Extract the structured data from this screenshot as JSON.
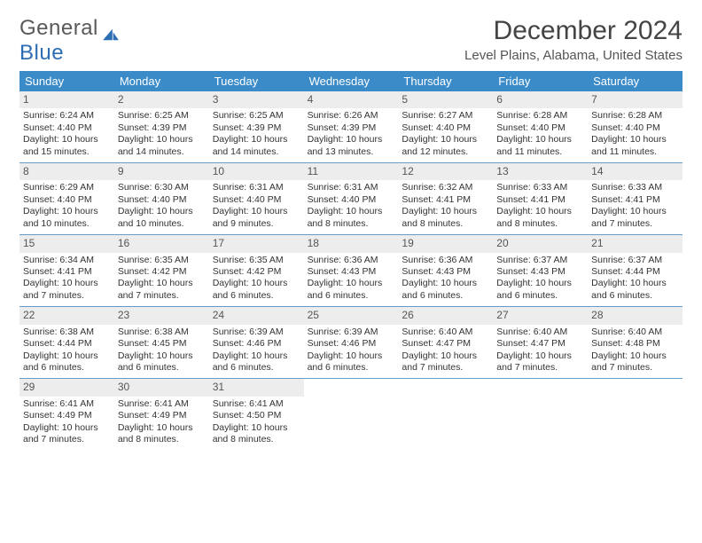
{
  "logo": {
    "word1": "General",
    "word2": "Blue"
  },
  "title": "December 2024",
  "location": "Level Plains, Alabama, United States",
  "colors": {
    "header_bg": "#3b8bc9",
    "header_text": "#ffffff",
    "daynum_bg": "#ededed",
    "week_border": "#6a9bc7",
    "logo_accent": "#2d6db4",
    "body_text": "#333333"
  },
  "daynames": [
    "Sunday",
    "Monday",
    "Tuesday",
    "Wednesday",
    "Thursday",
    "Friday",
    "Saturday"
  ],
  "weeks": [
    [
      {
        "n": "1",
        "sr": "Sunrise: 6:24 AM",
        "ss": "Sunset: 4:40 PM",
        "d1": "Daylight: 10 hours",
        "d2": "and 15 minutes."
      },
      {
        "n": "2",
        "sr": "Sunrise: 6:25 AM",
        "ss": "Sunset: 4:39 PM",
        "d1": "Daylight: 10 hours",
        "d2": "and 14 minutes."
      },
      {
        "n": "3",
        "sr": "Sunrise: 6:25 AM",
        "ss": "Sunset: 4:39 PM",
        "d1": "Daylight: 10 hours",
        "d2": "and 14 minutes."
      },
      {
        "n": "4",
        "sr": "Sunrise: 6:26 AM",
        "ss": "Sunset: 4:39 PM",
        "d1": "Daylight: 10 hours",
        "d2": "and 13 minutes."
      },
      {
        "n": "5",
        "sr": "Sunrise: 6:27 AM",
        "ss": "Sunset: 4:40 PM",
        "d1": "Daylight: 10 hours",
        "d2": "and 12 minutes."
      },
      {
        "n": "6",
        "sr": "Sunrise: 6:28 AM",
        "ss": "Sunset: 4:40 PM",
        "d1": "Daylight: 10 hours",
        "d2": "and 11 minutes."
      },
      {
        "n": "7",
        "sr": "Sunrise: 6:28 AM",
        "ss": "Sunset: 4:40 PM",
        "d1": "Daylight: 10 hours",
        "d2": "and 11 minutes."
      }
    ],
    [
      {
        "n": "8",
        "sr": "Sunrise: 6:29 AM",
        "ss": "Sunset: 4:40 PM",
        "d1": "Daylight: 10 hours",
        "d2": "and 10 minutes."
      },
      {
        "n": "9",
        "sr": "Sunrise: 6:30 AM",
        "ss": "Sunset: 4:40 PM",
        "d1": "Daylight: 10 hours",
        "d2": "and 10 minutes."
      },
      {
        "n": "10",
        "sr": "Sunrise: 6:31 AM",
        "ss": "Sunset: 4:40 PM",
        "d1": "Daylight: 10 hours",
        "d2": "and 9 minutes."
      },
      {
        "n": "11",
        "sr": "Sunrise: 6:31 AM",
        "ss": "Sunset: 4:40 PM",
        "d1": "Daylight: 10 hours",
        "d2": "and 8 minutes."
      },
      {
        "n": "12",
        "sr": "Sunrise: 6:32 AM",
        "ss": "Sunset: 4:41 PM",
        "d1": "Daylight: 10 hours",
        "d2": "and 8 minutes."
      },
      {
        "n": "13",
        "sr": "Sunrise: 6:33 AM",
        "ss": "Sunset: 4:41 PM",
        "d1": "Daylight: 10 hours",
        "d2": "and 8 minutes."
      },
      {
        "n": "14",
        "sr": "Sunrise: 6:33 AM",
        "ss": "Sunset: 4:41 PM",
        "d1": "Daylight: 10 hours",
        "d2": "and 7 minutes."
      }
    ],
    [
      {
        "n": "15",
        "sr": "Sunrise: 6:34 AM",
        "ss": "Sunset: 4:41 PM",
        "d1": "Daylight: 10 hours",
        "d2": "and 7 minutes."
      },
      {
        "n": "16",
        "sr": "Sunrise: 6:35 AM",
        "ss": "Sunset: 4:42 PM",
        "d1": "Daylight: 10 hours",
        "d2": "and 7 minutes."
      },
      {
        "n": "17",
        "sr": "Sunrise: 6:35 AM",
        "ss": "Sunset: 4:42 PM",
        "d1": "Daylight: 10 hours",
        "d2": "and 6 minutes."
      },
      {
        "n": "18",
        "sr": "Sunrise: 6:36 AM",
        "ss": "Sunset: 4:43 PM",
        "d1": "Daylight: 10 hours",
        "d2": "and 6 minutes."
      },
      {
        "n": "19",
        "sr": "Sunrise: 6:36 AM",
        "ss": "Sunset: 4:43 PM",
        "d1": "Daylight: 10 hours",
        "d2": "and 6 minutes."
      },
      {
        "n": "20",
        "sr": "Sunrise: 6:37 AM",
        "ss": "Sunset: 4:43 PM",
        "d1": "Daylight: 10 hours",
        "d2": "and 6 minutes."
      },
      {
        "n": "21",
        "sr": "Sunrise: 6:37 AM",
        "ss": "Sunset: 4:44 PM",
        "d1": "Daylight: 10 hours",
        "d2": "and 6 minutes."
      }
    ],
    [
      {
        "n": "22",
        "sr": "Sunrise: 6:38 AM",
        "ss": "Sunset: 4:44 PM",
        "d1": "Daylight: 10 hours",
        "d2": "and 6 minutes."
      },
      {
        "n": "23",
        "sr": "Sunrise: 6:38 AM",
        "ss": "Sunset: 4:45 PM",
        "d1": "Daylight: 10 hours",
        "d2": "and 6 minutes."
      },
      {
        "n": "24",
        "sr": "Sunrise: 6:39 AM",
        "ss": "Sunset: 4:46 PM",
        "d1": "Daylight: 10 hours",
        "d2": "and 6 minutes."
      },
      {
        "n": "25",
        "sr": "Sunrise: 6:39 AM",
        "ss": "Sunset: 4:46 PM",
        "d1": "Daylight: 10 hours",
        "d2": "and 6 minutes."
      },
      {
        "n": "26",
        "sr": "Sunrise: 6:40 AM",
        "ss": "Sunset: 4:47 PM",
        "d1": "Daylight: 10 hours",
        "d2": "and 7 minutes."
      },
      {
        "n": "27",
        "sr": "Sunrise: 6:40 AM",
        "ss": "Sunset: 4:47 PM",
        "d1": "Daylight: 10 hours",
        "d2": "and 7 minutes."
      },
      {
        "n": "28",
        "sr": "Sunrise: 6:40 AM",
        "ss": "Sunset: 4:48 PM",
        "d1": "Daylight: 10 hours",
        "d2": "and 7 minutes."
      }
    ],
    [
      {
        "n": "29",
        "sr": "Sunrise: 6:41 AM",
        "ss": "Sunset: 4:49 PM",
        "d1": "Daylight: 10 hours",
        "d2": "and 7 minutes."
      },
      {
        "n": "30",
        "sr": "Sunrise: 6:41 AM",
        "ss": "Sunset: 4:49 PM",
        "d1": "Daylight: 10 hours",
        "d2": "and 8 minutes."
      },
      {
        "n": "31",
        "sr": "Sunrise: 6:41 AM",
        "ss": "Sunset: 4:50 PM",
        "d1": "Daylight: 10 hours",
        "d2": "and 8 minutes."
      },
      null,
      null,
      null,
      null
    ]
  ]
}
